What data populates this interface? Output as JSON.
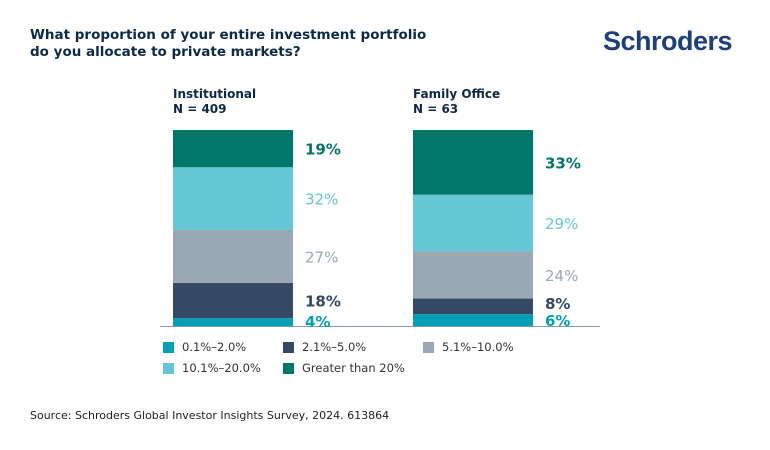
{
  "header": {
    "title_line1": "What proportion of your entire investment portfolio",
    "title_line2": "do you allocate to private markets?",
    "logo_text": "Schroders"
  },
  "footer": {
    "source": "Source: Schroders Global Investor Insights Survey, 2024. 613864"
  },
  "chart_data": {
    "type": "bar",
    "stacked": true,
    "normalized_to": 100,
    "title": "What proportion of your entire investment portfolio do you allocate to private markets?",
    "xlabel": "",
    "ylabel": "",
    "ylim": [
      0,
      100
    ],
    "grid": false,
    "legend_position": "bottom",
    "categories": [
      {
        "name": "Institutional",
        "n_label": "N = 409"
      },
      {
        "name": "Family Office",
        "n_label": "N = 63"
      }
    ],
    "series": [
      {
        "name": "0.1%–2.0%",
        "color": "#00a1b5",
        "values": [
          4,
          6
        ],
        "labels": [
          "4%",
          "6%"
        ]
      },
      {
        "name": "2.1%–5.0%",
        "color": "#344965",
        "values": [
          18,
          8
        ],
        "labels": [
          "18%",
          "8%"
        ]
      },
      {
        "name": "5.1%–10.0%",
        "color": "#9aa8b4",
        "values": [
          27,
          24
        ],
        "labels": [
          "27%",
          "24%"
        ]
      },
      {
        "name": "10.1%–20.0%",
        "color": "#66c7d4",
        "values": [
          32,
          29
        ],
        "labels": [
          "32%",
          "29%"
        ]
      },
      {
        "name": "Greater than 20%",
        "color": "#00776b",
        "values": [
          19,
          33
        ],
        "labels": [
          "19%",
          "33%"
        ]
      }
    ]
  }
}
